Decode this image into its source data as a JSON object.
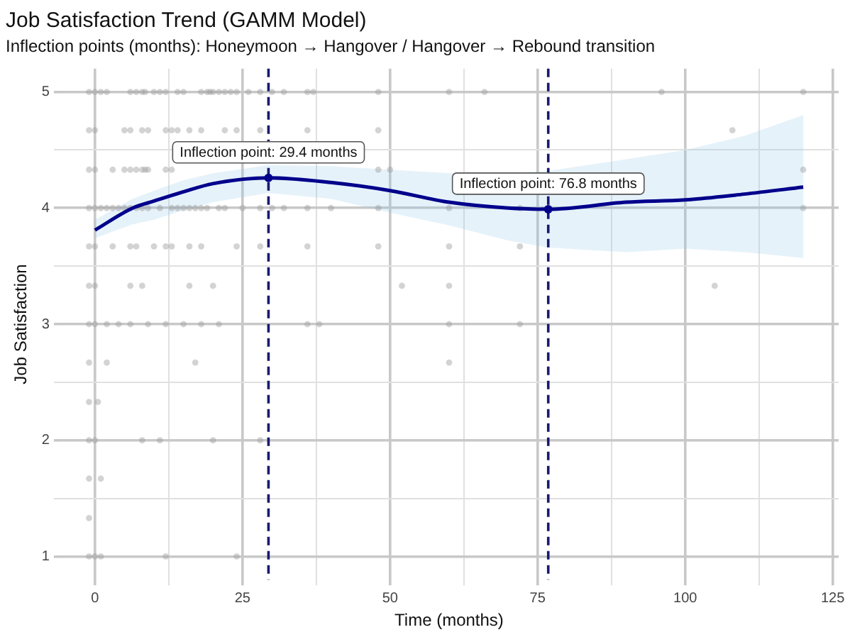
{
  "chart_data": {
    "type": "scatter",
    "title": "Job Satisfaction Trend (GAMM Model)",
    "subtitle": "Inflection points (months): Honeymoon → Hangover / Hangover → Rebound transition",
    "xlabel": "Time (months)",
    "ylabel": "Job Satisfaction",
    "xlim": [
      -6,
      126
    ],
    "ylim": [
      0.8,
      5.2
    ],
    "xticks": [
      0,
      {
        "value": 12.5,
        "label": null
      },
      25,
      {
        "value": 37.5,
        "label": null
      },
      50,
      {
        "value": 62.5,
        "label": null
      },
      75,
      {
        "value": 87.5,
        "label": null
      },
      100,
      {
        "value": 112.5,
        "label": null
      },
      125
    ],
    "yticks": [
      1,
      {
        "value": 1.5,
        "label": null
      },
      2,
      {
        "value": 2.5,
        "label": null
      },
      3,
      {
        "value": 3.5,
        "label": null
      },
      4,
      {
        "value": 4.5,
        "label": null
      },
      5
    ],
    "grid": true,
    "series": [
      {
        "marker": "circle",
        "color": "#9e9e9e",
        "x": [
          -1,
          0,
          1,
          2,
          6,
          7,
          8,
          8.5,
          10,
          11,
          12,
          14,
          15,
          18,
          19,
          19.5,
          20,
          21,
          22,
          23,
          24,
          26,
          28,
          30,
          32,
          36,
          37,
          48,
          60,
          66,
          96,
          120,
          -1,
          0,
          5,
          6,
          8,
          9,
          12,
          13,
          14,
          16,
          18,
          22,
          24,
          28,
          36,
          48,
          108,
          -1,
          0,
          3,
          5,
          6,
          7,
          8,
          8.5,
          9,
          12,
          13,
          48,
          50,
          120,
          -1,
          0,
          1,
          2,
          3,
          4,
          5,
          6,
          7,
          8,
          9,
          11,
          13,
          14,
          15,
          16,
          17,
          18,
          19,
          21,
          22,
          25,
          28,
          30,
          32,
          36,
          40,
          48,
          60,
          72,
          120,
          -1,
          0,
          3,
          6,
          7,
          10,
          12,
          13,
          16,
          18,
          24,
          28,
          36,
          48,
          60,
          72,
          -1,
          0,
          6,
          8,
          16,
          20,
          52,
          60,
          105,
          -1,
          0,
          2,
          4,
          6,
          9,
          12,
          15,
          18,
          21,
          36,
          38,
          60,
          72,
          -1,
          2,
          17,
          60,
          -1,
          0.5,
          -1,
          0,
          8,
          11,
          20,
          28,
          -1,
          1,
          -1,
          -1,
          0,
          1,
          12,
          24
        ],
        "values": [
          5,
          5,
          5,
          5,
          5,
          5,
          5,
          5,
          5,
          5,
          5,
          5,
          5,
          5,
          5,
          5,
          5,
          5,
          5,
          5,
          5,
          5,
          5,
          5,
          5,
          5,
          5,
          5,
          5,
          5,
          5,
          5,
          4.67,
          4.67,
          4.67,
          4.67,
          4.67,
          4.67,
          4.67,
          4.67,
          4.67,
          4.67,
          4.67,
          4.67,
          4.67,
          4.67,
          4.67,
          4.67,
          4.67,
          4.33,
          4.33,
          4.33,
          4.33,
          4.33,
          4.33,
          4.33,
          4.33,
          4.33,
          4.33,
          4.33,
          4.33,
          4.33,
          4.33,
          4,
          4,
          4,
          4,
          4,
          4,
          4,
          4,
          4,
          4,
          4,
          4,
          4,
          4,
          4,
          4,
          4,
          4,
          4,
          4,
          4,
          4,
          4,
          4,
          4,
          4,
          4,
          4,
          4,
          4,
          4,
          3.67,
          3.67,
          3.67,
          3.67,
          3.67,
          3.67,
          3.67,
          3.67,
          3.67,
          3.67,
          3.67,
          3.67,
          3.67,
          3.67,
          3.67,
          3.67,
          3.33,
          3.33,
          3.33,
          3.33,
          3.33,
          3.33,
          3.33,
          3.33,
          3.33,
          3,
          3,
          3,
          3,
          3,
          3,
          3,
          3,
          3,
          3,
          3,
          3,
          3,
          3,
          2.67,
          2.67,
          2.67,
          2.67,
          2.33,
          2.33,
          2,
          2,
          2,
          2,
          2,
          2,
          1.67,
          1.67,
          1.33,
          1,
          1,
          1,
          1,
          1
        ]
      },
      {
        "type": "line",
        "color": "#00008b",
        "x": [
          0,
          6.4,
          10,
          15,
          20,
          29.4,
          40,
          50,
          60,
          70,
          76.8,
          90,
          100,
          110,
          120
        ],
        "values": [
          3.81,
          4.0,
          4.06,
          4.14,
          4.21,
          4.26,
          4.22,
          4.15,
          4.05,
          4.0,
          3.99,
          4.05,
          4.07,
          4.12,
          4.18
        ],
        "lower": [
          3.74,
          3.86,
          3.9,
          3.98,
          4.05,
          4.13,
          4.08,
          3.96,
          3.85,
          3.72,
          3.66,
          3.62,
          3.65,
          3.62,
          3.57
        ],
        "upper": [
          3.9,
          4.08,
          4.15,
          4.24,
          4.3,
          4.37,
          4.36,
          4.33,
          4.3,
          4.3,
          4.32,
          4.42,
          4.5,
          4.62,
          4.8
        ],
        "marker": "none"
      },
      {
        "marker": "circle",
        "color": "#00008b",
        "x": [
          29.4,
          76.8
        ],
        "values": [
          4.26,
          3.99
        ]
      }
    ],
    "ref_lines": [
      {
        "axis": "x",
        "value": 29.4,
        "color": "#191970",
        "line_style": "dashed"
      },
      {
        "axis": "x",
        "value": 76.8,
        "color": "#191970",
        "line_style": "dashed"
      }
    ],
    "annotations": [
      {
        "text": "Inflection point: 29.4 months",
        "x": 29.4,
        "y": 4.26
      },
      {
        "text": "Inflection point: 76.8 months",
        "x": 76.8,
        "y": 3.99
      }
    ]
  }
}
